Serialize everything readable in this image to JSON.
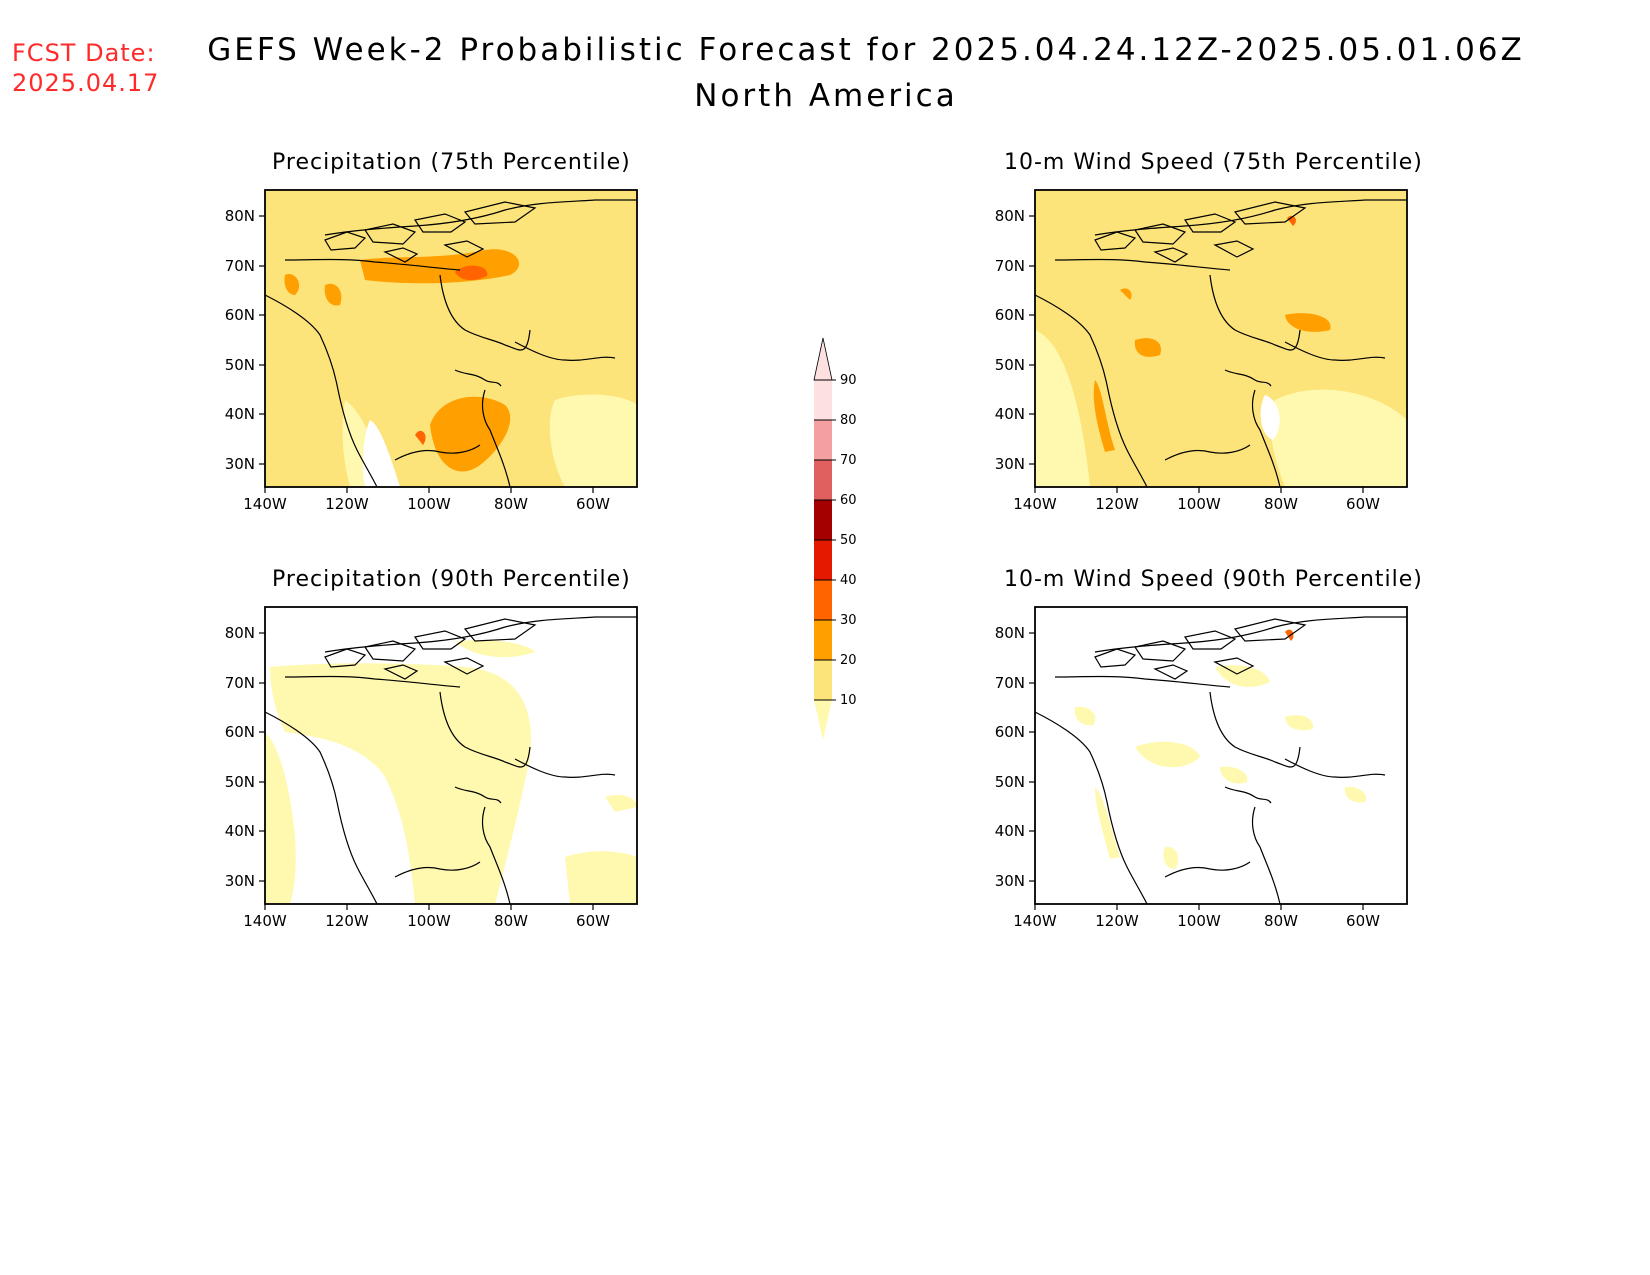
{
  "header": {
    "fcst_label": "FCST Date:",
    "fcst_date": "2025.04.17",
    "title": "GEFS Week-2 Probabilistic Forecast for 2025.04.24.12Z-2025.05.01.06Z",
    "subtitle": "North America"
  },
  "panels": [
    {
      "id": "precip75",
      "title": "Precipitation (75th Percentile)"
    },
    {
      "id": "wind75",
      "title": "10-m Wind Speed (75th Percentile)"
    },
    {
      "id": "precip90",
      "title": "Precipitation (90th Percentile)"
    },
    {
      "id": "wind90",
      "title": "10-m Wind Speed (90th Percentile)"
    }
  ],
  "axes": {
    "lat_labels": [
      "80N",
      "70N",
      "60N",
      "50N",
      "40N",
      "30N"
    ],
    "lon_labels": [
      "140W",
      "120W",
      "100W",
      "80W",
      "60W"
    ]
  },
  "colorbar": {
    "levels": [
      "10",
      "20",
      "30",
      "40",
      "50",
      "60",
      "70",
      "80",
      "90"
    ],
    "colors": [
      "#fff9b0",
      "#fde47a",
      "#ffa000",
      "#ff6400",
      "#e31a00",
      "#a50000",
      "#e06060",
      "#f4a0a0",
      "#fde0e0"
    ]
  }
}
